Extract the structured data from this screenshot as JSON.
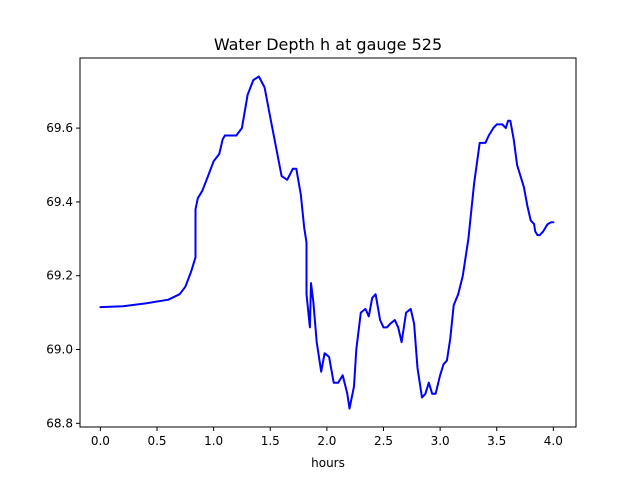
{
  "chart_data": {
    "type": "line",
    "title": "Water Depth h at gauge 525",
    "xlabel": "hours",
    "ylabel": "",
    "xlim": [
      -0.18,
      4.2
    ],
    "ylim": [
      68.79,
      69.79
    ],
    "xticks": [
      0.0,
      0.5,
      1.0,
      1.5,
      2.0,
      2.5,
      3.0,
      3.5,
      4.0
    ],
    "xtick_labels": [
      "0.0",
      "0.5",
      "1.0",
      "1.5",
      "2.0",
      "2.5",
      "3.0",
      "3.5",
      "4.0"
    ],
    "yticks": [
      68.8,
      69.0,
      69.2,
      69.4,
      69.6
    ],
    "ytick_labels": [
      "68.8",
      "69.0",
      "69.2",
      "69.4",
      "69.6"
    ],
    "grid": false,
    "legend": "none",
    "colors": {
      "line": "#0000ff"
    },
    "series": [
      {
        "x": [
          0.0,
          0.2,
          0.4,
          0.6,
          0.7,
          0.75,
          0.8,
          0.84,
          0.84,
          0.86,
          0.9,
          0.95,
          1.0,
          1.05,
          1.08,
          1.1,
          1.15,
          1.2,
          1.25,
          1.3,
          1.35,
          1.4,
          1.45,
          1.5,
          1.55,
          1.6,
          1.65,
          1.7,
          1.73,
          1.77,
          1.8,
          1.82,
          1.82,
          1.85,
          1.86,
          1.88,
          1.91,
          1.95,
          1.98,
          2.02,
          2.06,
          2.1,
          2.14,
          2.18,
          2.2,
          2.24,
          2.26,
          2.3,
          2.34,
          2.37,
          2.4,
          2.43,
          2.47,
          2.5,
          2.53,
          2.56,
          2.6,
          2.63,
          2.66,
          2.7,
          2.74,
          2.77,
          2.8,
          2.84,
          2.87,
          2.9,
          2.93,
          2.96,
          3.0,
          3.03,
          3.06,
          3.09,
          3.12,
          3.16,
          3.2,
          3.25,
          3.3,
          3.35,
          3.4,
          3.43,
          3.47,
          3.5,
          3.52,
          3.55,
          3.58,
          3.6,
          3.62,
          3.65,
          3.68,
          3.71,
          3.74,
          3.77,
          3.8,
          3.83,
          3.84,
          3.86,
          3.88,
          3.91,
          3.93,
          3.95,
          3.98,
          4.0
        ],
        "y": [
          69.115,
          69.117,
          69.125,
          69.135,
          69.15,
          69.17,
          69.21,
          69.25,
          69.38,
          69.41,
          69.43,
          69.47,
          69.51,
          69.53,
          69.57,
          69.58,
          69.58,
          69.58,
          69.6,
          69.69,
          69.73,
          69.74,
          69.71,
          69.63,
          69.55,
          69.47,
          69.46,
          69.49,
          69.49,
          69.42,
          69.33,
          69.29,
          69.15,
          69.06,
          69.18,
          69.13,
          69.02,
          68.94,
          68.99,
          68.98,
          68.91,
          68.91,
          68.93,
          68.88,
          68.84,
          68.9,
          69.0,
          69.1,
          69.11,
          69.09,
          69.14,
          69.15,
          69.08,
          69.06,
          69.06,
          69.07,
          69.08,
          69.06,
          69.02,
          69.1,
          69.11,
          69.07,
          68.95,
          68.87,
          68.88,
          68.91,
          68.88,
          68.88,
          68.93,
          68.96,
          68.97,
          69.03,
          69.12,
          69.15,
          69.2,
          69.3,
          69.45,
          69.56,
          69.56,
          69.58,
          69.6,
          69.61,
          69.61,
          69.61,
          69.6,
          69.62,
          69.62,
          69.57,
          69.5,
          69.47,
          69.44,
          69.39,
          69.35,
          69.34,
          69.32,
          69.31,
          69.31,
          69.32,
          69.33,
          69.34,
          69.345,
          69.345
        ]
      }
    ]
  }
}
